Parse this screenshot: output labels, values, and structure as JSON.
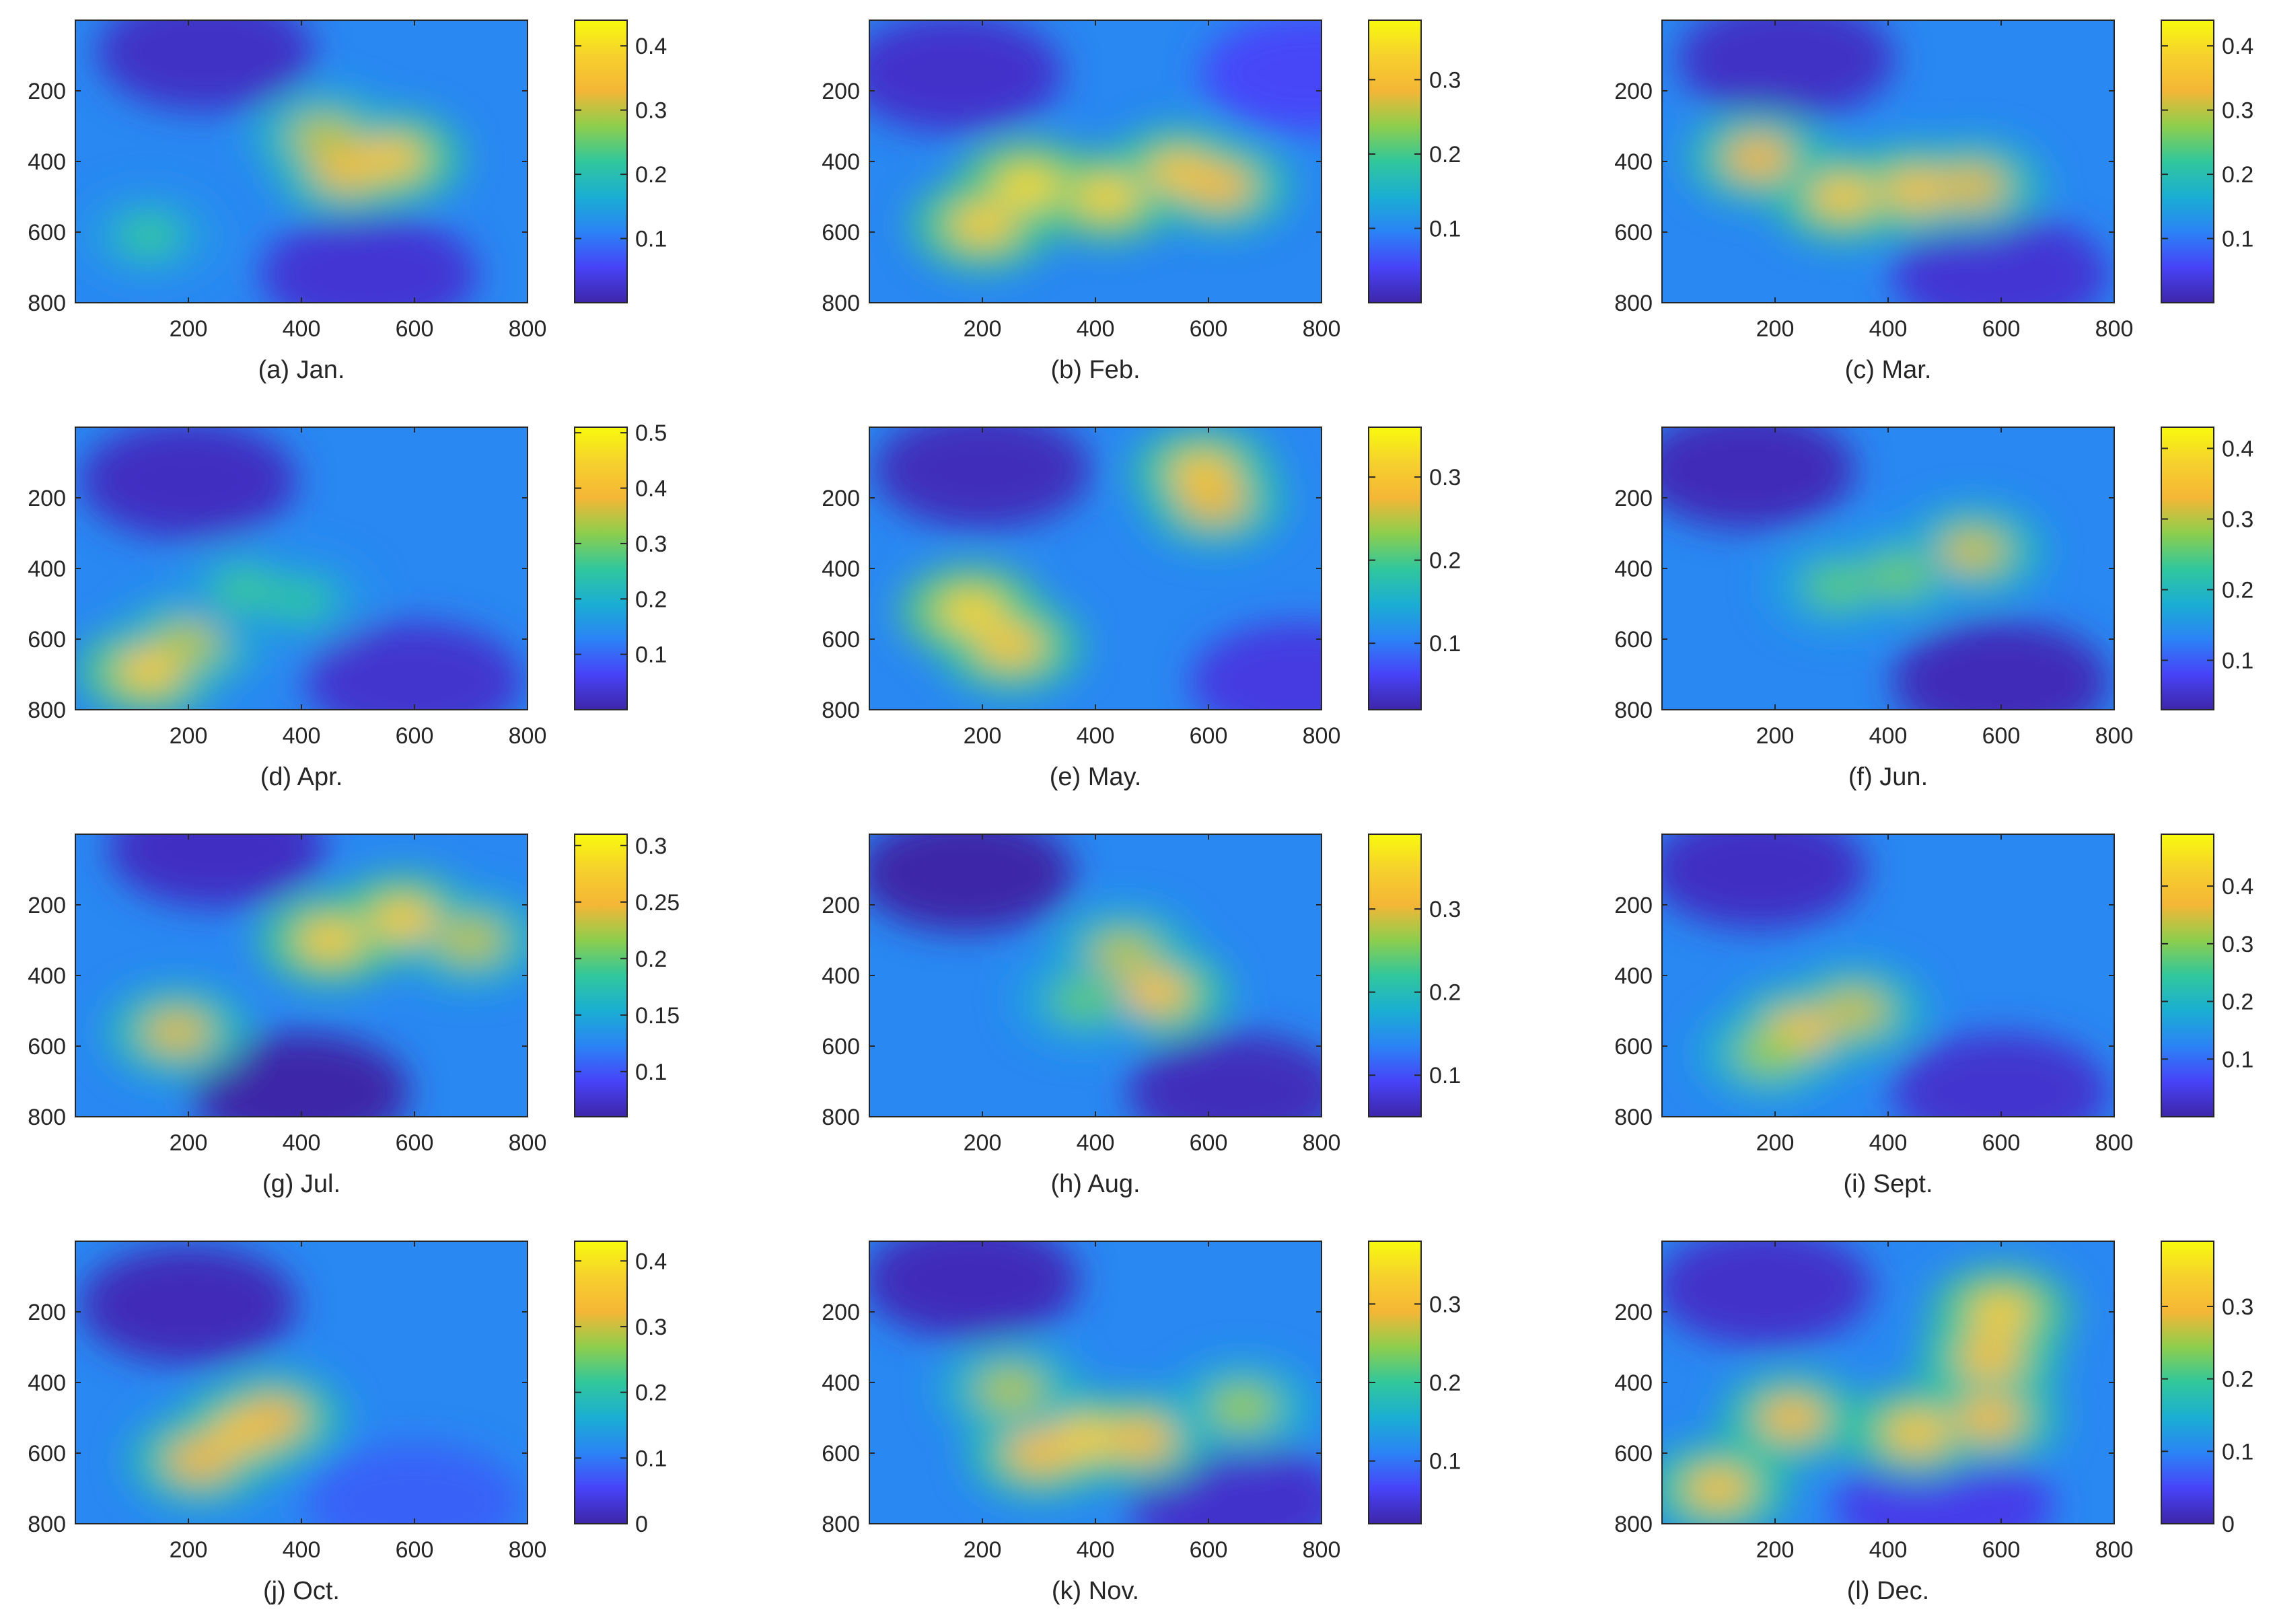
{
  "chart_data": {
    "type": "heatmap",
    "colormap": [
      "#3e26a8",
      "#4743f8",
      "#2b83f6",
      "#1aaed3",
      "#31c79c",
      "#8dce4d",
      "#f5b636",
      "#f6d12d",
      "#f8fa0d"
    ],
    "x_ticks": [
      "200",
      "400",
      "600",
      "800"
    ],
    "y_ticks": [
      "200",
      "400",
      "600",
      "800"
    ],
    "xlim": [
      0,
      800
    ],
    "ylim": [
      800,
      0
    ],
    "panels": [
      {
        "caption": "(a)  Jan.",
        "colorbar": {
          "ticks": [
            "0.1",
            "0.2",
            "0.3",
            "0.4"
          ],
          "tick_values": [
            0.1,
            0.2,
            0.3,
            0.4
          ],
          "range": [
            0.0,
            0.44
          ]
        },
        "blobs": [
          {
            "x": 480,
            "y": 420,
            "value": 0.34
          },
          {
            "x": 560,
            "y": 390,
            "value": 0.36
          },
          {
            "x": 440,
            "y": 330,
            "value": 0.3
          },
          {
            "x": 130,
            "y": 610,
            "value": 0.22
          }
        ],
        "lows": [
          {
            "x": 230,
            "y": 90,
            "value": 0.02
          },
          {
            "x": 520,
            "y": 720,
            "value": 0.03
          }
        ]
      },
      {
        "caption": "(b)  Feb.",
        "colorbar": {
          "ticks": [
            "0.1",
            "0.2",
            "0.3"
          ],
          "tick_values": [
            0.1,
            0.2,
            0.3
          ],
          "range": [
            0.0,
            0.38
          ]
        },
        "blobs": [
          {
            "x": 280,
            "y": 470,
            "value": 0.34
          },
          {
            "x": 420,
            "y": 500,
            "value": 0.33
          },
          {
            "x": 550,
            "y": 430,
            "value": 0.31
          },
          {
            "x": 200,
            "y": 580,
            "value": 0.32
          },
          {
            "x": 620,
            "y": 470,
            "value": 0.29
          }
        ],
        "lows": [
          {
            "x": 150,
            "y": 150,
            "value": 0.02
          },
          {
            "x": 780,
            "y": 150,
            "value": 0.05
          }
        ]
      },
      {
        "caption": "(c)  Mar.",
        "colorbar": {
          "ticks": [
            "0.1",
            "0.2",
            "0.3",
            "0.4"
          ],
          "tick_values": [
            0.1,
            0.2,
            0.3,
            0.4
          ],
          "range": [
            0.0,
            0.44
          ]
        },
        "blobs": [
          {
            "x": 320,
            "y": 500,
            "value": 0.36
          },
          {
            "x": 450,
            "y": 480,
            "value": 0.35
          },
          {
            "x": 550,
            "y": 470,
            "value": 0.32
          },
          {
            "x": 170,
            "y": 390,
            "value": 0.33
          }
        ],
        "lows": [
          {
            "x": 220,
            "y": 110,
            "value": 0.02
          },
          {
            "x": 600,
            "y": 720,
            "value": 0.03
          }
        ]
      },
      {
        "caption": "(d)  Apr.",
        "colorbar": {
          "ticks": [
            "0.1",
            "0.2",
            "0.3",
            "0.4",
            "0.5"
          ],
          "tick_values": [
            0.1,
            0.2,
            0.3,
            0.4,
            0.5
          ],
          "range": [
            0.0,
            0.51
          ]
        },
        "blobs": [
          {
            "x": 130,
            "y": 690,
            "value": 0.43
          },
          {
            "x": 200,
            "y": 610,
            "value": 0.34
          },
          {
            "x": 300,
            "y": 460,
            "value": 0.26
          },
          {
            "x": 400,
            "y": 490,
            "value": 0.25
          }
        ],
        "lows": [
          {
            "x": 200,
            "y": 150,
            "value": 0.02
          },
          {
            "x": 600,
            "y": 720,
            "value": 0.03
          }
        ]
      },
      {
        "caption": "(e)  May.",
        "colorbar": {
          "ticks": [
            "0.1",
            "0.2",
            "0.3"
          ],
          "tick_values": [
            0.1,
            0.2,
            0.3
          ],
          "range": [
            0.02,
            0.36
          ]
        },
        "blobs": [
          {
            "x": 180,
            "y": 520,
            "value": 0.32
          },
          {
            "x": 250,
            "y": 620,
            "value": 0.3
          },
          {
            "x": 590,
            "y": 130,
            "value": 0.3
          },
          {
            "x": 610,
            "y": 210,
            "value": 0.27
          }
        ],
        "lows": [
          {
            "x": 200,
            "y": 120,
            "value": 0.03
          },
          {
            "x": 760,
            "y": 720,
            "value": 0.05
          }
        ]
      },
      {
        "caption": "(f)  Jun.",
        "colorbar": {
          "ticks": [
            "0.1",
            "0.2",
            "0.3",
            "0.4"
          ],
          "tick_values": [
            0.1,
            0.2,
            0.3,
            0.4
          ],
          "range": [
            0.03,
            0.43
          ]
        },
        "blobs": [
          {
            "x": 550,
            "y": 350,
            "value": 0.31
          },
          {
            "x": 420,
            "y": 420,
            "value": 0.26
          },
          {
            "x": 310,
            "y": 450,
            "value": 0.25
          }
        ],
        "lows": [
          {
            "x": 150,
            "y": 120,
            "value": 0.04
          },
          {
            "x": 600,
            "y": 720,
            "value": 0.04
          }
        ]
      },
      {
        "caption": "(g)  Jul.",
        "colorbar": {
          "ticks": [
            "0.1",
            "0.15",
            "0.2",
            "0.25",
            "0.3"
          ],
          "tick_values": [
            0.1,
            0.15,
            0.2,
            0.25,
            0.3
          ],
          "range": [
            0.06,
            0.31
          ]
        },
        "blobs": [
          {
            "x": 450,
            "y": 300,
            "value": 0.27
          },
          {
            "x": 580,
            "y": 240,
            "value": 0.27
          },
          {
            "x": 700,
            "y": 300,
            "value": 0.23
          },
          {
            "x": 180,
            "y": 560,
            "value": 0.24
          }
        ],
        "lows": [
          {
            "x": 400,
            "y": 730,
            "value": 0.06
          },
          {
            "x": 250,
            "y": 40,
            "value": 0.07
          }
        ]
      },
      {
        "caption": "(h)  Aug.",
        "colorbar": {
          "ticks": [
            "0.1",
            "0.2",
            "0.3"
          ],
          "tick_values": [
            0.1,
            0.2,
            0.3
          ],
          "range": [
            0.05,
            0.39
          ]
        },
        "blobs": [
          {
            "x": 510,
            "y": 450,
            "value": 0.32
          },
          {
            "x": 450,
            "y": 340,
            "value": 0.28
          },
          {
            "x": 380,
            "y": 470,
            "value": 0.24
          }
        ],
        "lows": [
          {
            "x": 170,
            "y": 110,
            "value": 0.05
          },
          {
            "x": 650,
            "y": 730,
            "value": 0.06
          }
        ]
      },
      {
        "caption": "(i)  Sept.",
        "colorbar": {
          "ticks": [
            "0.1",
            "0.2",
            "0.3",
            "0.4"
          ],
          "tick_values": [
            0.1,
            0.2,
            0.3,
            0.4
          ],
          "range": [
            0.0,
            0.49
          ]
        },
        "blobs": [
          {
            "x": 240,
            "y": 560,
            "value": 0.39
          },
          {
            "x": 340,
            "y": 500,
            "value": 0.34
          },
          {
            "x": 190,
            "y": 620,
            "value": 0.31
          }
        ],
        "lows": [
          {
            "x": 170,
            "y": 100,
            "value": 0.02
          },
          {
            "x": 600,
            "y": 730,
            "value": 0.03
          }
        ]
      },
      {
        "caption": "(j)  Oct.",
        "colorbar": {
          "ticks": [
            "0",
            "0.1",
            "0.2",
            "0.3",
            "0.4"
          ],
          "tick_values": [
            0.0,
            0.1,
            0.2,
            0.3,
            0.4
          ],
          "range": [
            0.0,
            0.43
          ]
        },
        "blobs": [
          {
            "x": 300,
            "y": 540,
            "value": 0.35
          },
          {
            "x": 220,
            "y": 620,
            "value": 0.32
          },
          {
            "x": 350,
            "y": 500,
            "value": 0.32
          }
        ],
        "lows": [
          {
            "x": 200,
            "y": 180,
            "value": 0.01
          },
          {
            "x": 600,
            "y": 740,
            "value": 0.08
          }
        ]
      },
      {
        "caption": "(k)  Nov.",
        "colorbar": {
          "ticks": [
            "0.1",
            "0.2",
            "0.3"
          ],
          "tick_values": [
            0.1,
            0.2,
            0.3
          ],
          "range": [
            0.02,
            0.38
          ]
        },
        "blobs": [
          {
            "x": 380,
            "y": 560,
            "value": 0.33
          },
          {
            "x": 300,
            "y": 600,
            "value": 0.3
          },
          {
            "x": 480,
            "y": 560,
            "value": 0.3
          },
          {
            "x": 250,
            "y": 420,
            "value": 0.26
          },
          {
            "x": 660,
            "y": 470,
            "value": 0.25
          }
        ],
        "lows": [
          {
            "x": 180,
            "y": 110,
            "value": 0.03
          },
          {
            "x": 650,
            "y": 740,
            "value": 0.04
          }
        ]
      },
      {
        "caption": "(l)  Dec.",
        "colorbar": {
          "ticks": [
            "0",
            "0.1",
            "0.2",
            "0.3"
          ],
          "tick_values": [
            0.0,
            0.1,
            0.2,
            0.3
          ],
          "range": [
            0.0,
            0.39
          ]
        },
        "blobs": [
          {
            "x": 600,
            "y": 200,
            "value": 0.33
          },
          {
            "x": 580,
            "y": 330,
            "value": 0.31
          },
          {
            "x": 450,
            "y": 540,
            "value": 0.32
          },
          {
            "x": 580,
            "y": 500,
            "value": 0.3
          },
          {
            "x": 230,
            "y": 500,
            "value": 0.3
          },
          {
            "x": 100,
            "y": 700,
            "value": 0.31
          }
        ],
        "lows": [
          {
            "x": 180,
            "y": 130,
            "value": 0.02
          },
          {
            "x": 500,
            "y": 750,
            "value": 0.04
          }
        ]
      }
    ]
  }
}
